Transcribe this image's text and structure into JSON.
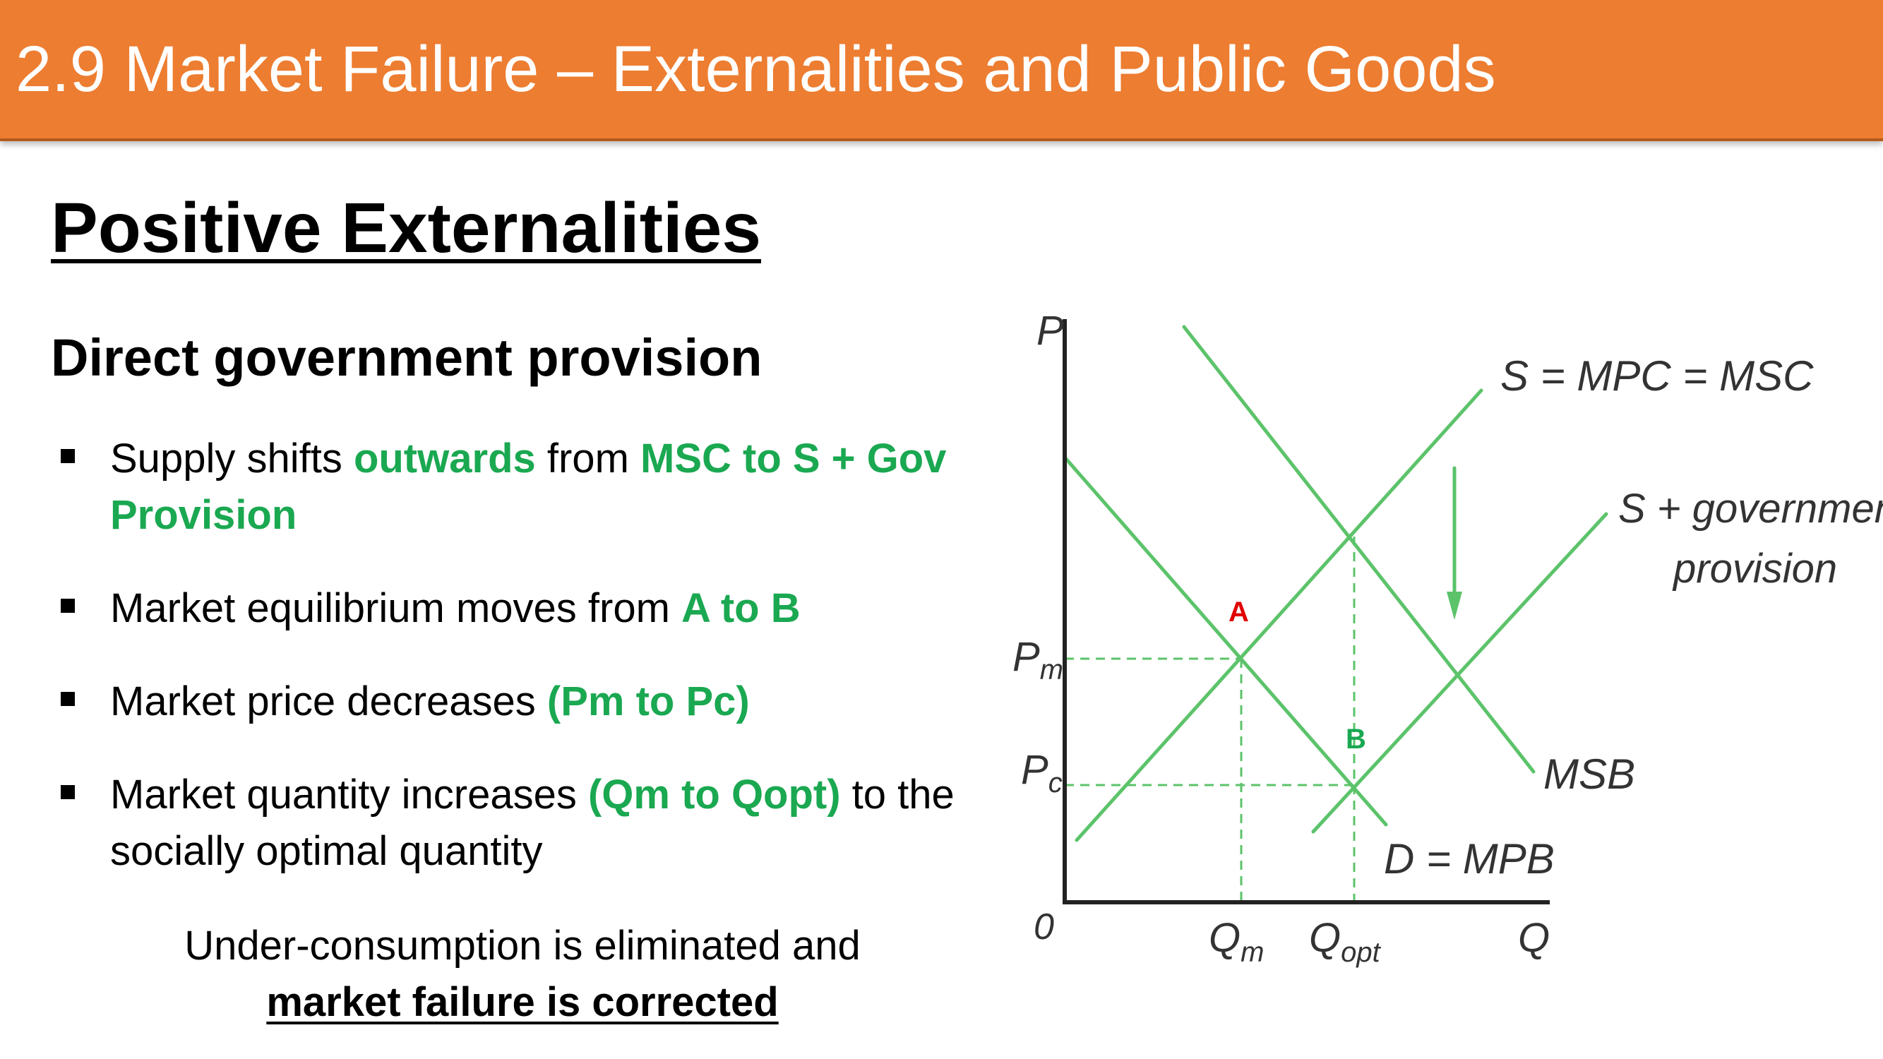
{
  "header": {
    "title": "2.9 Market Failure – Externalities and Public Goods"
  },
  "section_title": "Positive Externalities",
  "subtitle": "Direct government provision",
  "bullets": [
    {
      "pre": "Supply shifts ",
      "h1": "outwards",
      "mid": " from ",
      "h2": "MSC to S + Gov Provision"
    },
    {
      "pre": "Market equilibrium moves from ",
      "h1": "A to B"
    },
    {
      "pre": "Market price decreases ",
      "h1": "(Pm to Pc)"
    },
    {
      "pre": "Market quantity increases ",
      "h1": "(Qm to Qopt)",
      "post": " to the socially optimal quantity"
    }
  ],
  "conclusion": {
    "line1": "Under-consumption is eliminated and",
    "line2": "market failure is corrected"
  },
  "diagram": {
    "y_axis": "P",
    "x_axis": "Q",
    "origin": "0",
    "y_ticks": {
      "pm_main": "P",
      "pm_sub": "m",
      "pc_main": "P",
      "pc_sub": "c"
    },
    "x_ticks": {
      "qm_main": "Q",
      "qm_sub": "m",
      "qopt_main": "Q",
      "qopt_sub": "opt"
    },
    "curves": {
      "supply": "S = MPC = MSC",
      "supply_gov_line1": "S + government",
      "supply_gov_line2": "provision",
      "msb": "MSB",
      "demand": "D = MPB"
    },
    "points": {
      "a": "A",
      "b": "B"
    },
    "colors": {
      "curve": "#5cc36a",
      "point_a": "#e00000",
      "point_b": "#1aa851",
      "axis": "#222222"
    }
  }
}
